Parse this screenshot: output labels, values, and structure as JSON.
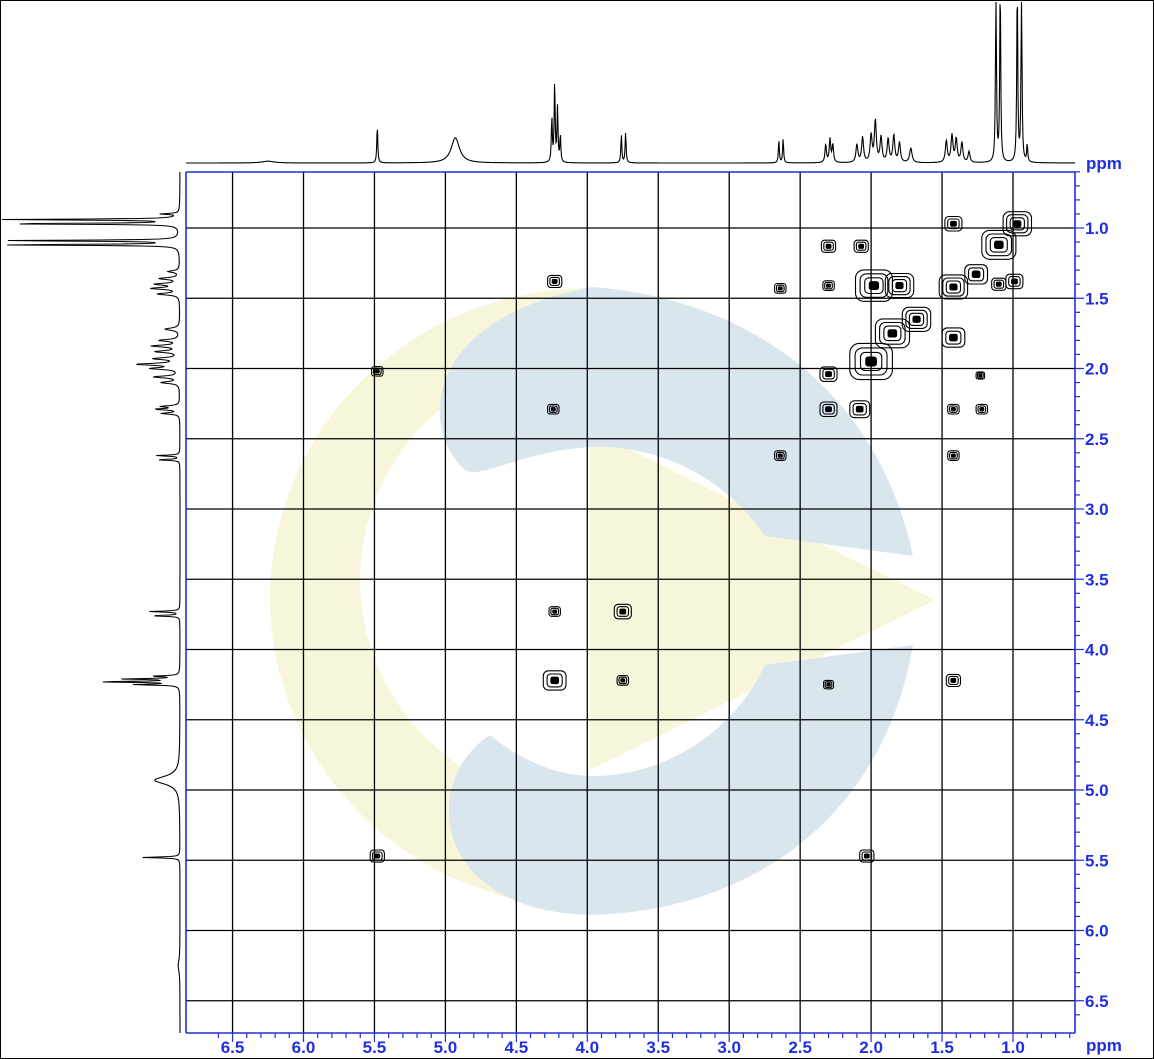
{
  "chart_data": {
    "type": "heatmap",
    "subtype": "2D NMR COSY contour plot",
    "title": "",
    "xlabel": "ppm",
    "ylabel": "ppm",
    "xlim": [
      6.6,
      0.4
    ],
    "ylim": [
      6.6,
      0.6
    ],
    "x_axis_reversed": true,
    "y_axis_increases_downward": true,
    "x_ticks": [
      "6.5",
      "6.0",
      "5.5",
      "5.0",
      "4.5",
      "4.0",
      "3.5",
      "3.0",
      "2.5",
      "2.0",
      "1.5",
      "1.0"
    ],
    "y_ticks": [
      "1.0",
      "1.5",
      "2.0",
      "2.5",
      "3.0",
      "3.5",
      "4.0",
      "4.5",
      "5.0",
      "5.5",
      "6.0",
      "6.5"
    ],
    "grid": true,
    "axis_color": "#1f2ee0",
    "spectrum_1d_peaks": [
      {
        "ppm": 6.25,
        "height": 0.02,
        "width": 0.05
      },
      {
        "ppm": 5.48,
        "height": 0.42,
        "width": 0.004
      },
      {
        "ppm": 4.93,
        "height": 0.28,
        "width": 0.035
      },
      {
        "ppm": 4.25,
        "height": 0.5,
        "width": 0.004
      },
      {
        "ppm": 4.23,
        "height": 0.9,
        "width": 0.004
      },
      {
        "ppm": 4.21,
        "height": 0.6,
        "width": 0.004
      },
      {
        "ppm": 4.19,
        "height": 0.3,
        "width": 0.004
      },
      {
        "ppm": 3.76,
        "height": 0.32,
        "width": 0.004
      },
      {
        "ppm": 3.73,
        "height": 0.34,
        "width": 0.004
      },
      {
        "ppm": 2.65,
        "height": 0.25,
        "width": 0.004
      },
      {
        "ppm": 2.62,
        "height": 0.27,
        "width": 0.004
      },
      {
        "ppm": 2.32,
        "height": 0.2,
        "width": 0.006
      },
      {
        "ppm": 2.29,
        "height": 0.26,
        "width": 0.006
      },
      {
        "ppm": 2.27,
        "height": 0.2,
        "width": 0.006
      },
      {
        "ppm": 2.1,
        "height": 0.2,
        "width": 0.008
      },
      {
        "ppm": 2.06,
        "height": 0.28,
        "width": 0.008
      },
      {
        "ppm": 2.0,
        "height": 0.3,
        "width": 0.008
      },
      {
        "ppm": 1.97,
        "height": 0.46,
        "width": 0.008
      },
      {
        "ppm": 1.93,
        "height": 0.28,
        "width": 0.008
      },
      {
        "ppm": 1.88,
        "height": 0.26,
        "width": 0.008
      },
      {
        "ppm": 1.84,
        "height": 0.3,
        "width": 0.008
      },
      {
        "ppm": 1.8,
        "height": 0.22,
        "width": 0.008
      },
      {
        "ppm": 1.72,
        "height": 0.16,
        "width": 0.01
      },
      {
        "ppm": 1.47,
        "height": 0.24,
        "width": 0.008
      },
      {
        "ppm": 1.43,
        "height": 0.3,
        "width": 0.008
      },
      {
        "ppm": 1.4,
        "height": 0.26,
        "width": 0.008
      },
      {
        "ppm": 1.36,
        "height": 0.22,
        "width": 0.008
      },
      {
        "ppm": 1.31,
        "height": 0.12,
        "width": 0.008
      },
      {
        "ppm": 1.12,
        "height": 2.0,
        "width": 0.004
      },
      {
        "ppm": 1.09,
        "height": 2.0,
        "width": 0.004
      },
      {
        "ppm": 0.97,
        "height": 2.0,
        "width": 0.004
      },
      {
        "ppm": 0.94,
        "height": 2.0,
        "width": 0.004
      },
      {
        "ppm": 0.9,
        "height": 0.2,
        "width": 0.004
      }
    ],
    "cross_peaks": [
      {
        "x": 4.23,
        "y": 1.38,
        "size": 0.05
      },
      {
        "x": 2.64,
        "y": 1.43,
        "size": 0.04
      },
      {
        "x": 2.3,
        "y": 1.41,
        "size": 0.04
      },
      {
        "x": 2.3,
        "y": 1.13,
        "size": 0.05
      },
      {
        "x": 2.07,
        "y": 1.13,
        "size": 0.05
      },
      {
        "x": 1.98,
        "y": 1.41,
        "size": 0.13
      },
      {
        "x": 1.8,
        "y": 1.41,
        "size": 0.1
      },
      {
        "x": 5.48,
        "y": 2.02,
        "size": 0.04
      },
      {
        "x": 4.24,
        "y": 2.29,
        "size": 0.04
      },
      {
        "x": 2.3,
        "y": 2.04,
        "size": 0.06
      },
      {
        "x": 2.3,
        "y": 2.29,
        "size": 0.06
      },
      {
        "x": 2.08,
        "y": 2.29,
        "size": 0.07
      },
      {
        "x": 2.0,
        "y": 1.95,
        "size": 0.15
      },
      {
        "x": 1.85,
        "y": 1.75,
        "size": 0.12
      },
      {
        "x": 1.68,
        "y": 1.65,
        "size": 0.1
      },
      {
        "x": 1.42,
        "y": 2.29,
        "size": 0.04
      },
      {
        "x": 1.22,
        "y": 2.29,
        "size": 0.04
      },
      {
        "x": 1.23,
        "y": 2.05,
        "size": 0.03
      },
      {
        "x": 1.42,
        "y": 1.78,
        "size": 0.08
      },
      {
        "x": 1.42,
        "y": 1.42,
        "size": 0.1
      },
      {
        "x": 1.26,
        "y": 1.33,
        "size": 0.08
      },
      {
        "x": 1.1,
        "y": 1.4,
        "size": 0.05
      },
      {
        "x": 0.99,
        "y": 1.38,
        "size": 0.06
      },
      {
        "x": 1.42,
        "y": 0.97,
        "size": 0.06
      },
      {
        "x": 1.1,
        "y": 1.12,
        "size": 0.12
      },
      {
        "x": 0.97,
        "y": 0.97,
        "size": 0.1
      },
      {
        "x": 2.64,
        "y": 2.62,
        "size": 0.04
      },
      {
        "x": 1.42,
        "y": 2.62,
        "size": 0.04
      },
      {
        "x": 4.23,
        "y": 3.73,
        "size": 0.04
      },
      {
        "x": 3.75,
        "y": 3.73,
        "size": 0.06
      },
      {
        "x": 4.23,
        "y": 4.22,
        "size": 0.08
      },
      {
        "x": 3.75,
        "y": 4.22,
        "size": 0.04
      },
      {
        "x": 2.3,
        "y": 4.25,
        "size": 0.035
      },
      {
        "x": 1.42,
        "y": 4.22,
        "size": 0.05
      },
      {
        "x": 5.48,
        "y": 5.47,
        "size": 0.05
      },
      {
        "x": 2.03,
        "y": 5.47,
        "size": 0.05
      }
    ]
  },
  "watermark": {
    "colors": [
      "#d9e6ee",
      "#f8f6da"
    ]
  }
}
